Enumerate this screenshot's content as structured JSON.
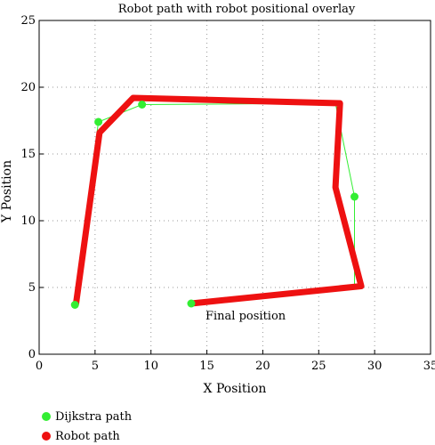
{
  "chart_data": {
    "type": "line",
    "title": "Robot path with robot positional overlay",
    "xlabel": "X Position",
    "ylabel": "Y Position",
    "xlim": [
      0,
      35
    ],
    "ylim": [
      0,
      25
    ],
    "xticks": [
      0,
      5,
      10,
      15,
      20,
      25,
      30,
      35
    ],
    "yticks": [
      0,
      5,
      10,
      15,
      20,
      25
    ],
    "grid": true,
    "legend_placement": "bottom-left",
    "series": [
      {
        "name": "Dijkstra path",
        "color": "#33ee33",
        "marker": "circle",
        "points": [
          {
            "x": 3.2,
            "y": 3.7
          },
          {
            "x": 5.3,
            "y": 17.4
          },
          {
            "x": 9.2,
            "y": 18.7
          },
          {
            "x": 28.2,
            "y": 11.8
          },
          {
            "x": 13.6,
            "y": 3.8
          }
        ],
        "path": [
          [
            3.2,
            3.7
          ],
          [
            5.3,
            17.4
          ],
          [
            9.2,
            18.7
          ],
          [
            26.5,
            18.8
          ],
          [
            28.2,
            11.8
          ],
          [
            28.2,
            5.2
          ],
          [
            13.6,
            3.8
          ]
        ]
      },
      {
        "name": "Robot path",
        "color": "#ee1111",
        "marker": "none",
        "path": [
          [
            3.3,
            3.8
          ],
          [
            5.4,
            16.6
          ],
          [
            8.4,
            19.2
          ],
          [
            26.9,
            18.8
          ],
          [
            26.5,
            12.5
          ],
          [
            28.8,
            5.1
          ],
          [
            13.6,
            3.8
          ]
        ]
      }
    ],
    "annotations": [
      {
        "text": "Final position",
        "x": 15,
        "y": 2.9
      }
    ]
  }
}
